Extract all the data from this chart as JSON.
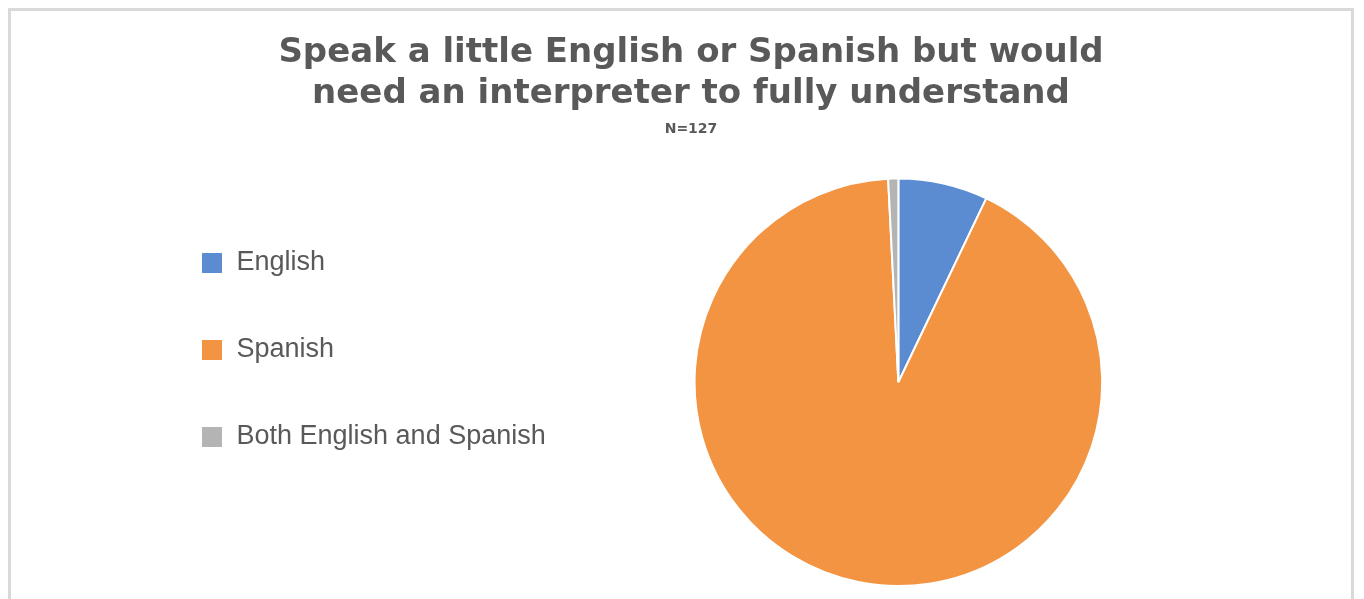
{
  "chart_data": {
    "type": "pie",
    "title": [
      "Speak a little English or Spanish but would",
      "need an interpreter to fully understand"
    ],
    "subtitle": "N=127",
    "categories": [
      "English",
      "Spanish",
      "Both English and Spanish"
    ],
    "values": [
      7.1,
      92.1,
      0.8
    ],
    "colors": [
      "#5b8bd0",
      "#f29441",
      "#b4b4b4"
    ],
    "legend": "left"
  }
}
